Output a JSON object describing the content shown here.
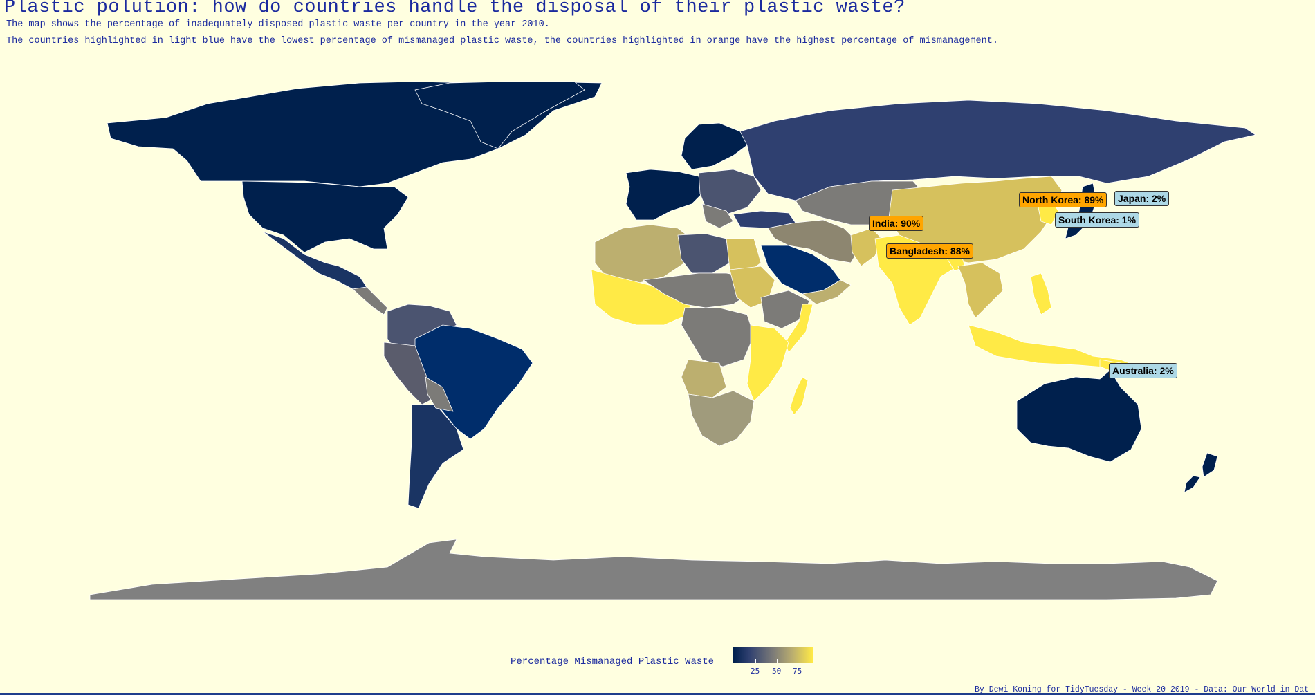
{
  "header": {
    "title": "Plastic polution: how do countries handle the disposal of their plastic waste?",
    "subtitle_1": "The map shows the percentage of inadequately disposed plastic waste per country in the year 2010.",
    "subtitle_2": "The countries highlighted in light blue have the lowest percentage of mismanaged plastic waste, the countries highlighted in orange have the highest percentage of mismanagement."
  },
  "colors": {
    "background": "#ffffe0",
    "low": "#00204d",
    "mid": "#7c7b78",
    "high": "#ffea46",
    "highlight_low": "#add8e6",
    "highlight_high": "#ffa500",
    "no_data": "#808080"
  },
  "map_labels": [
    {
      "text": "North Korea: 89%",
      "kind": "high"
    },
    {
      "text": "Japan: 2%",
      "kind": "low"
    },
    {
      "text": "India: 90%",
      "kind": "high"
    },
    {
      "text": "South Korea: 1%",
      "kind": "low"
    },
    {
      "text": "Bangladesh: 88%",
      "kind": "high"
    },
    {
      "text": "Australia: 2%",
      "kind": "low"
    }
  ],
  "legend": {
    "title": "Percentage Mismanaged Plastic Waste",
    "ticks": [
      "25",
      "50",
      "75"
    ]
  },
  "caption": "By Dewi Koning for TidyTuesday - Week 20 2019 - Data: Our World in Dat"
}
